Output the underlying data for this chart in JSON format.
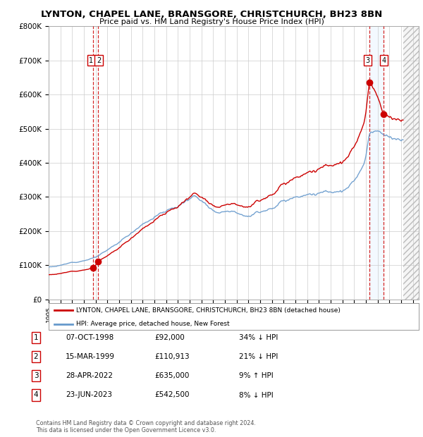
{
  "title": "LYNTON, CHAPEL LANE, BRANSGORE, CHRISTCHURCH, BH23 8BN",
  "subtitle": "Price paid vs. HM Land Registry's House Price Index (HPI)",
  "ylim": [
    0,
    800000
  ],
  "yticks": [
    0,
    100000,
    200000,
    300000,
    400000,
    500000,
    600000,
    700000,
    800000
  ],
  "ytick_labels": [
    "£0",
    "£100K",
    "£200K",
    "£300K",
    "£400K",
    "£500K",
    "£600K",
    "£700K",
    "£800K"
  ],
  "xlim_start": 1995.0,
  "xlim_end": 2026.5,
  "sale_dates": [
    1998.77,
    1999.21,
    2022.32,
    2023.48
  ],
  "sale_prices": [
    92000,
    110913,
    635000,
    542500
  ],
  "sale_labels": [
    "1",
    "2",
    "3",
    "4"
  ],
  "sale_color": "#cc0000",
  "hpi_color": "#6699cc",
  "legend_house_label": "LYNTON, CHAPEL LANE, BRANSGORE, CHRISTCHURCH, BH23 8BN (detached house)",
  "legend_hpi_label": "HPI: Average price, detached house, New Forest",
  "table_rows": [
    [
      "1",
      "07-OCT-1998",
      "£92,000",
      "34% ↓ HPI"
    ],
    [
      "2",
      "15-MAR-1999",
      "£110,913",
      "21% ↓ HPI"
    ],
    [
      "3",
      "28-APR-2022",
      "£635,000",
      "9% ↑ HPI"
    ],
    [
      "4",
      "23-JUN-2023",
      "£542,500",
      "8% ↓ HPI"
    ]
  ],
  "footer": "Contains HM Land Registry data © Crown copyright and database right 2024.\nThis data is licensed under the Open Government Licence v3.0.",
  "background_color": "#ffffff",
  "grid_color": "#cccccc"
}
